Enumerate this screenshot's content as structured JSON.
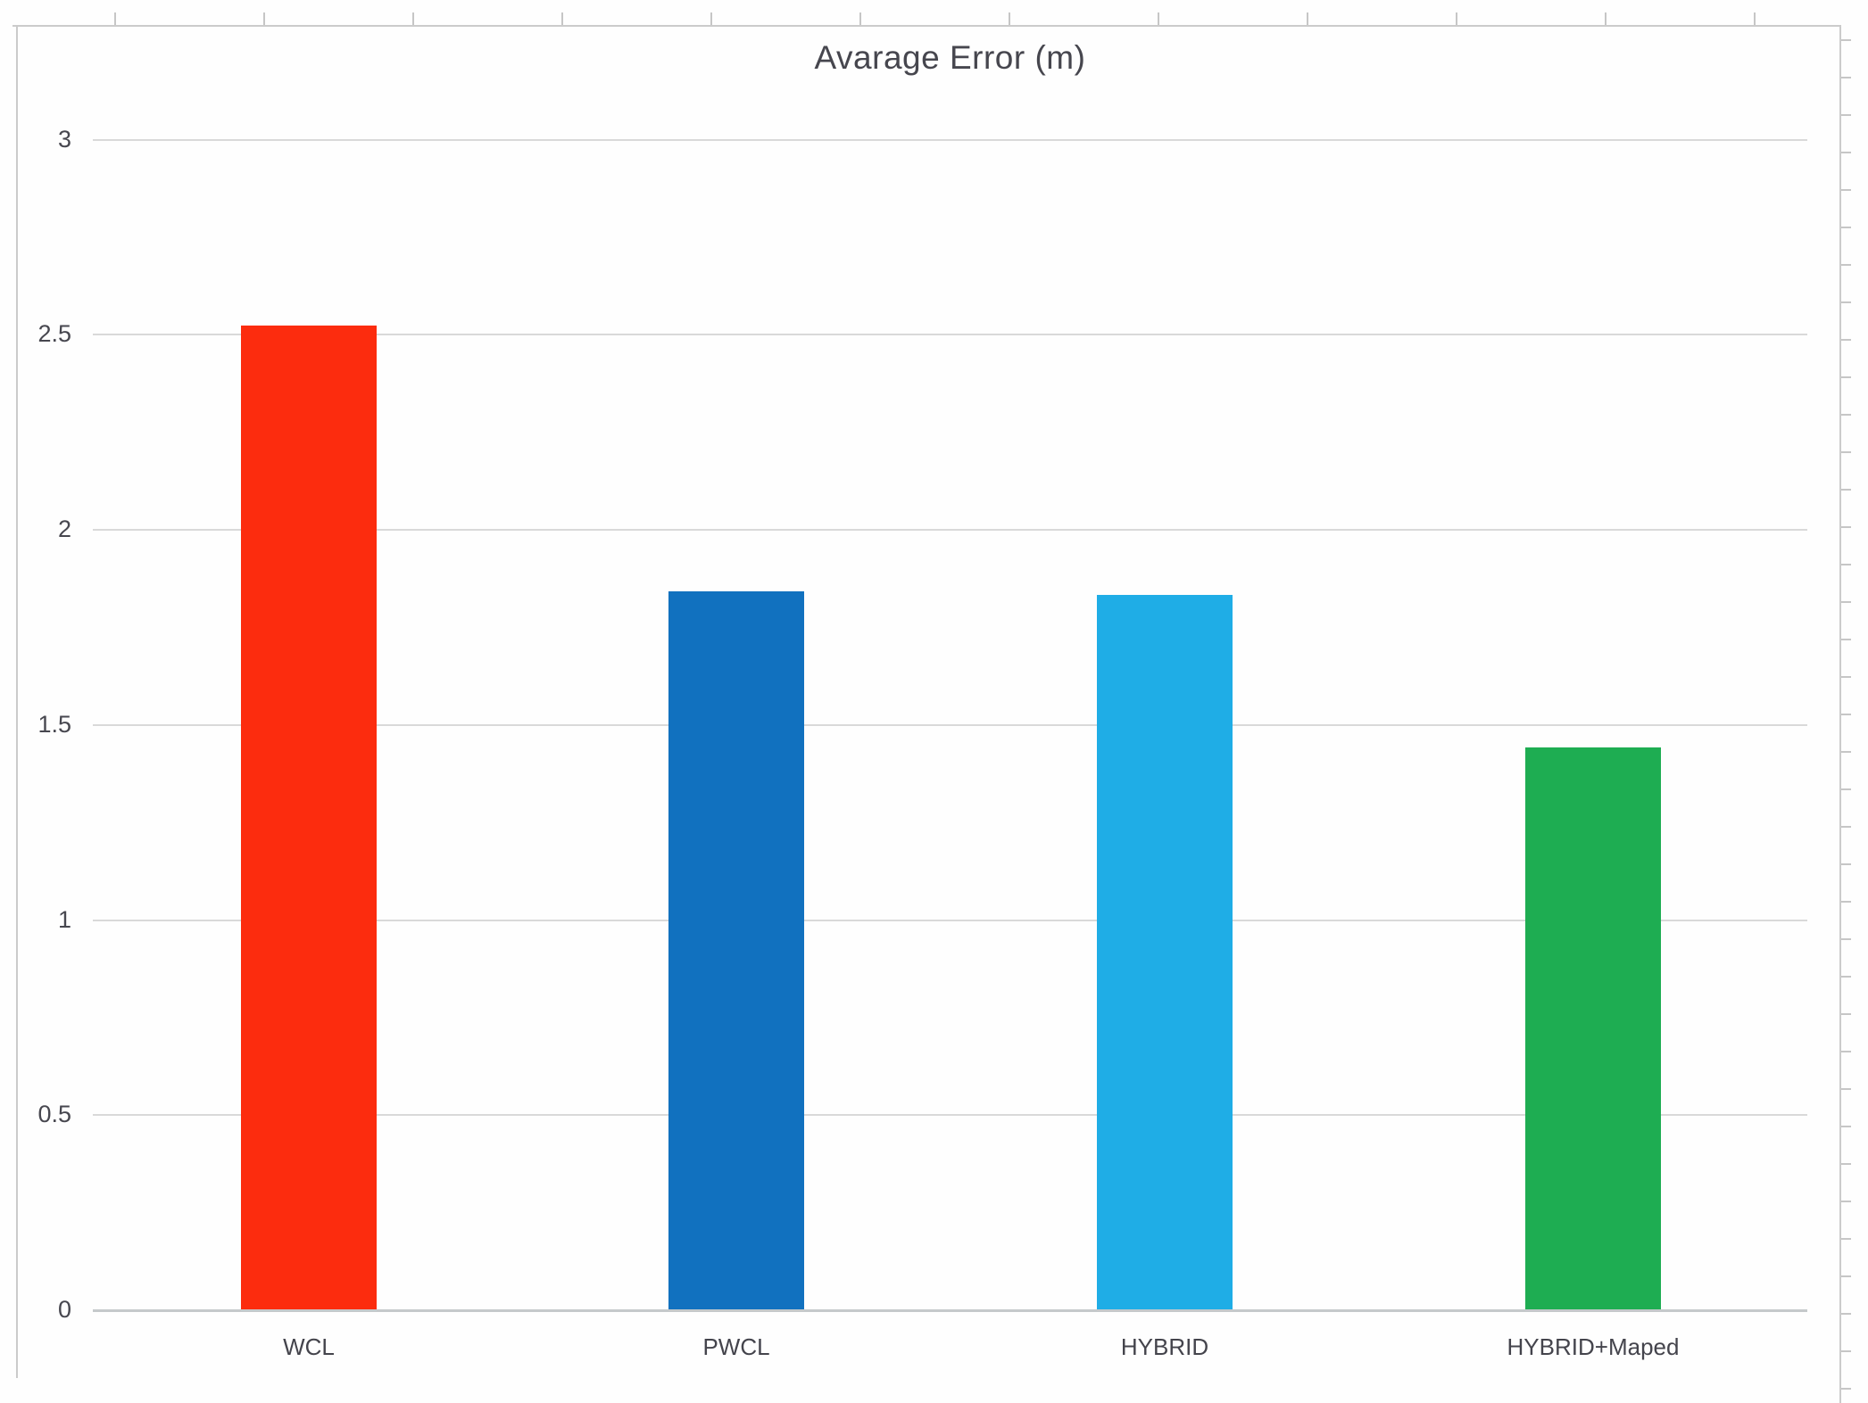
{
  "chart_data": {
    "type": "bar",
    "title": "Avarage Error (m)",
    "categories": [
      "WCL",
      "PWCL",
      "HYBRID",
      "HYBRID+Maped"
    ],
    "values": [
      2.52,
      1.84,
      1.83,
      1.44
    ],
    "bar_colors": [
      "#fc2c0e",
      "#1171bf",
      "#1fade6",
      "#1ead52"
    ],
    "xlabel": "",
    "ylabel": "",
    "ylim": [
      0,
      3
    ],
    "ytick_step": 0.5,
    "yticks": [
      {
        "value": 0,
        "label": "0"
      },
      {
        "value": 0.5,
        "label": "0.5"
      },
      {
        "value": 1,
        "label": "1"
      },
      {
        "value": 1.5,
        "label": "1.5"
      },
      {
        "value": 2,
        "label": "2"
      },
      {
        "value": 2.5,
        "label": "2.5"
      },
      {
        "value": 3,
        "label": "3"
      }
    ],
    "grid": true,
    "legend_position": "none"
  },
  "colors": {
    "gridline": "#d9d9d9",
    "axis_baseline": "#c5c9cb",
    "text": "#47474f",
    "frame": "#cbcbcb",
    "background": "#fefefe"
  }
}
